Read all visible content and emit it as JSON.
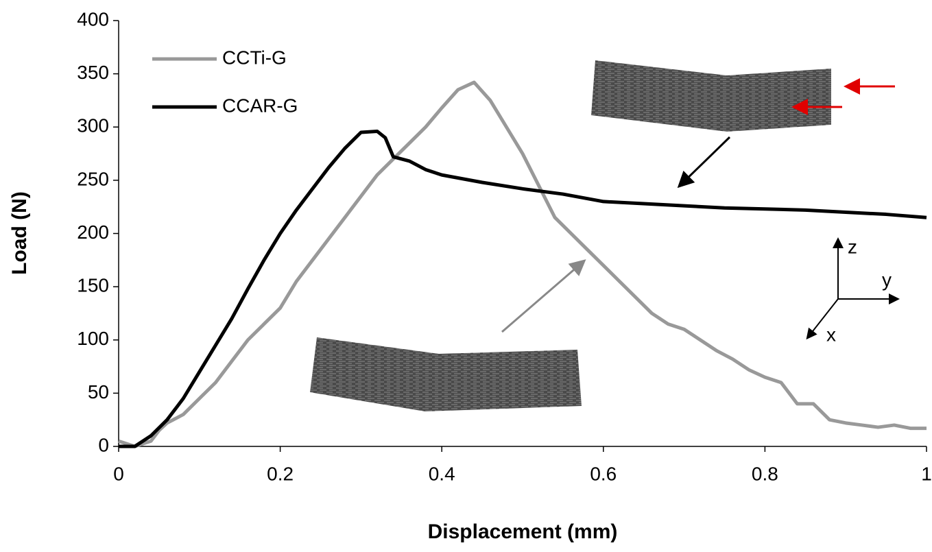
{
  "chart_data": {
    "type": "line",
    "xlabel": "Displacement (mm)",
    "ylabel": "Load (N)",
    "xlim": [
      0,
      1
    ],
    "ylim": [
      0,
      400
    ],
    "xticks": [
      0,
      0.2,
      0.4,
      0.6,
      0.8,
      1
    ],
    "yticks": [
      0,
      50,
      100,
      150,
      200,
      250,
      300,
      350,
      400
    ],
    "legend": "upper left",
    "annotations": [
      "z",
      "y",
      "x"
    ],
    "series": [
      {
        "name": "CCTi-G",
        "color": "#999999",
        "x": [
          0,
          0.02,
          0.04,
          0.05,
          0.06,
          0.08,
          0.1,
          0.12,
          0.14,
          0.16,
          0.18,
          0.2,
          0.22,
          0.24,
          0.26,
          0.28,
          0.3,
          0.32,
          0.34,
          0.36,
          0.38,
          0.4,
          0.42,
          0.44,
          0.46,
          0.48,
          0.5,
          0.52,
          0.54,
          0.56,
          0.58,
          0.6,
          0.62,
          0.64,
          0.66,
          0.68,
          0.7,
          0.72,
          0.74,
          0.76,
          0.78,
          0.8,
          0.82,
          0.84,
          0.86,
          0.88,
          0.9,
          0.92,
          0.94,
          0.96,
          0.98,
          1
        ],
        "values": [
          5,
          0,
          5,
          15,
          22,
          30,
          45,
          60,
          80,
          100,
          115,
          130,
          155,
          175,
          195,
          215,
          235,
          255,
          270,
          285,
          300,
          318,
          335,
          342,
          325,
          300,
          275,
          245,
          215,
          200,
          185,
          170,
          155,
          140,
          125,
          115,
          110,
          100,
          90,
          82,
          72,
          65,
          60,
          40,
          40,
          25,
          22,
          20,
          18,
          20,
          17,
          17
        ]
      },
      {
        "name": "CCAR-G",
        "color": "#000000",
        "x": [
          0,
          0.02,
          0.04,
          0.06,
          0.08,
          0.1,
          0.12,
          0.14,
          0.16,
          0.18,
          0.2,
          0.22,
          0.24,
          0.26,
          0.28,
          0.3,
          0.32,
          0.33,
          0.34,
          0.36,
          0.38,
          0.4,
          0.45,
          0.5,
          0.55,
          0.6,
          0.65,
          0.7,
          0.75,
          0.8,
          0.85,
          0.9,
          0.95,
          1
        ],
        "values": [
          0,
          0,
          10,
          25,
          45,
          70,
          95,
          120,
          148,
          175,
          200,
          222,
          242,
          262,
          280,
          295,
          296,
          290,
          272,
          268,
          260,
          255,
          248,
          242,
          237,
          230,
          228,
          226,
          224,
          223,
          222,
          220,
          218,
          215
        ]
      }
    ]
  }
}
